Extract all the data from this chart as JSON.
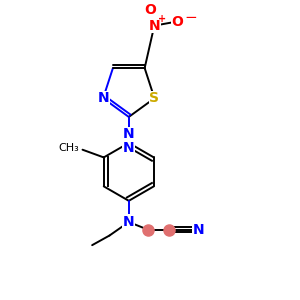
{
  "background_color": "#ffffff",
  "figsize": [
    3.0,
    3.0
  ],
  "dpi": 100,
  "bond_lw": 1.4,
  "font_size": 10,
  "colors": {
    "bond": "black",
    "N": "blue",
    "O": "red",
    "S": "#ccaa00",
    "charge_plus": "red",
    "charge_minus": "red",
    "highlight": "#e07070"
  }
}
